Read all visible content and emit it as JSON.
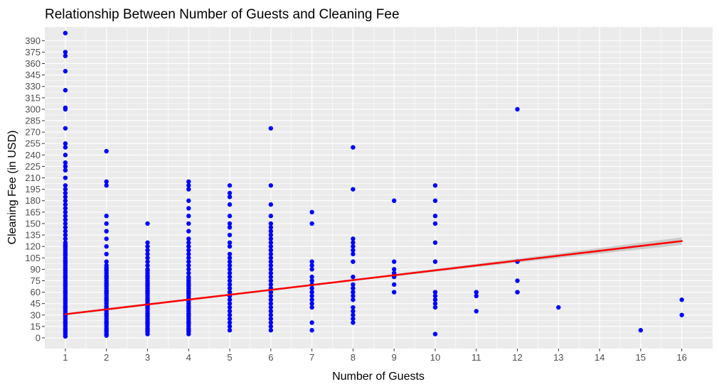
{
  "chart_data": {
    "type": "scatter",
    "title": "Relationship Between Number of Guests and Cleaning Fee",
    "xlabel": "Number of Guests",
    "ylabel": "Cleaning Fee (in USD)",
    "xlim": [
      0.5,
      16.75
    ],
    "ylim": [
      -14,
      408
    ],
    "x_ticks": [
      1,
      2,
      3,
      4,
      5,
      6,
      7,
      8,
      9,
      10,
      11,
      12,
      13,
      14,
      15,
      16
    ],
    "y_ticks": [
      0,
      15,
      30,
      45,
      60,
      75,
      90,
      105,
      120,
      135,
      150,
      165,
      180,
      195,
      210,
      225,
      240,
      255,
      270,
      285,
      300,
      315,
      330,
      345,
      360,
      375,
      390
    ],
    "grid": true,
    "panel_background": "#EBEBEB",
    "grid_color": "#FFFFFF",
    "point_color": "#0000FF",
    "trend_color": "#FF0000",
    "ribbon_color": "#C0C0C0",
    "series": [
      {
        "x": 1,
        "values": [
          2,
          5,
          8,
          10,
          12,
          15,
          18,
          20,
          22,
          25,
          28,
          30,
          32,
          35,
          38,
          40,
          42,
          45,
          48,
          50,
          52,
          55,
          58,
          60,
          62,
          65,
          68,
          70,
          72,
          75,
          78,
          80,
          82,
          85,
          88,
          90,
          92,
          95,
          98,
          100,
          102,
          105,
          108,
          110,
          112,
          115,
          118,
          120,
          122,
          125,
          130,
          135,
          140,
          145,
          150,
          155,
          160,
          165,
          170,
          175,
          180,
          185,
          190,
          195,
          200,
          210,
          220,
          225,
          230,
          240,
          250,
          255,
          275,
          300,
          302,
          325,
          350,
          370,
          375,
          400
        ]
      },
      {
        "x": 2,
        "values": [
          3,
          5,
          8,
          10,
          12,
          15,
          18,
          20,
          22,
          25,
          28,
          30,
          32,
          35,
          38,
          40,
          42,
          45,
          48,
          50,
          52,
          55,
          58,
          60,
          62,
          65,
          68,
          70,
          72,
          75,
          78,
          80,
          82,
          85,
          88,
          90,
          92,
          95,
          100,
          110,
          120,
          130,
          140,
          150,
          160,
          200,
          205,
          245
        ]
      },
      {
        "x": 3,
        "values": [
          5,
          8,
          10,
          12,
          15,
          18,
          20,
          22,
          25,
          28,
          30,
          32,
          35,
          38,
          40,
          42,
          45,
          48,
          50,
          52,
          55,
          58,
          60,
          62,
          65,
          68,
          70,
          72,
          75,
          78,
          80,
          82,
          85,
          88,
          90,
          95,
          100,
          105,
          110,
          115,
          120,
          125,
          150
        ]
      },
      {
        "x": 4,
        "values": [
          5,
          8,
          10,
          12,
          15,
          18,
          20,
          22,
          25,
          28,
          30,
          32,
          35,
          38,
          40,
          42,
          45,
          48,
          50,
          52,
          55,
          58,
          60,
          62,
          65,
          68,
          70,
          72,
          75,
          78,
          80,
          85,
          90,
          95,
          100,
          105,
          110,
          115,
          120,
          125,
          130,
          140,
          150,
          160,
          170,
          180,
          195,
          200,
          205
        ]
      },
      {
        "x": 5,
        "values": [
          10,
          15,
          20,
          25,
          30,
          35,
          40,
          45,
          50,
          55,
          60,
          65,
          70,
          75,
          80,
          85,
          90,
          95,
          100,
          105,
          110,
          120,
          125,
          135,
          145,
          150,
          160,
          175,
          185,
          190,
          200
        ]
      },
      {
        "x": 6,
        "values": [
          10,
          15,
          20,
          25,
          30,
          35,
          40,
          45,
          50,
          55,
          60,
          65,
          70,
          75,
          80,
          85,
          90,
          95,
          100,
          105,
          110,
          115,
          120,
          125,
          130,
          135,
          140,
          145,
          150,
          160,
          175,
          200,
          275
        ]
      },
      {
        "x": 7,
        "values": [
          10,
          20,
          40,
          45,
          50,
          55,
          60,
          65,
          70,
          75,
          80,
          90,
          95,
          100,
          150,
          165
        ]
      },
      {
        "x": 8,
        "values": [
          20,
          25,
          30,
          35,
          40,
          50,
          55,
          60,
          65,
          70,
          80,
          100,
          110,
          115,
          120,
          125,
          130,
          195,
          250
        ]
      },
      {
        "x": 9,
        "values": [
          60,
          70,
          80,
          85,
          90,
          100,
          180
        ]
      },
      {
        "x": 10,
        "values": [
          5,
          40,
          45,
          50,
          55,
          60,
          100,
          125,
          150,
          160,
          180,
          200
        ]
      },
      {
        "x": 11,
        "values": [
          35,
          55,
          60
        ]
      },
      {
        "x": 12,
        "values": [
          60,
          75,
          100,
          300
        ]
      },
      {
        "x": 13,
        "values": [
          40
        ]
      },
      {
        "x": 15,
        "values": [
          10
        ]
      },
      {
        "x": 16,
        "values": [
          30,
          50
        ]
      }
    ],
    "trend_line": {
      "x": [
        1,
        16
      ],
      "y": [
        31,
        127
      ],
      "ribbon_halfwidth_at_x": [
        [
          1,
          1.5
        ],
        [
          8,
          1.2
        ],
        [
          12,
          2.5
        ],
        [
          16,
          5
        ]
      ]
    }
  }
}
